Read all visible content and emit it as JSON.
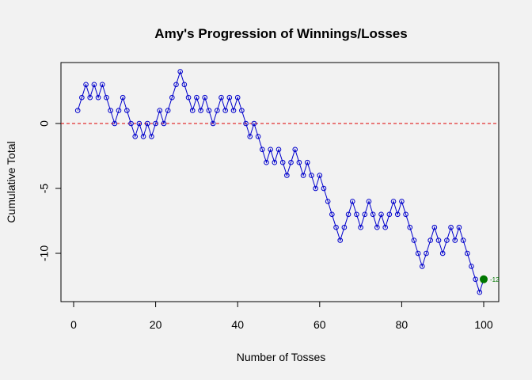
{
  "chart_data": {
    "type": "line",
    "title": "Amy's Progression of Winnings/Losses",
    "xlabel": "Number of Tosses",
    "ylabel": "Cumulative Total",
    "xlim": [
      0,
      100
    ],
    "ylim": [
      -13,
      4
    ],
    "x_ticks": [
      0,
      20,
      40,
      60,
      80,
      100
    ],
    "y_ticks": [
      -10,
      -5,
      0
    ],
    "grid": false,
    "line_color": "#0000cc",
    "marker": "open-circle",
    "reference_line": {
      "y": 0,
      "color": "#dd0000",
      "style": "dashed"
    },
    "final_point": {
      "x": 100,
      "y": -12,
      "label": "-12",
      "color": "#007700"
    },
    "x": [
      1,
      2,
      3,
      4,
      5,
      6,
      7,
      8,
      9,
      10,
      11,
      12,
      13,
      14,
      15,
      16,
      17,
      18,
      19,
      20,
      21,
      22,
      23,
      24,
      25,
      26,
      27,
      28,
      29,
      30,
      31,
      32,
      33,
      34,
      35,
      36,
      37,
      38,
      39,
      40,
      41,
      42,
      43,
      44,
      45,
      46,
      47,
      48,
      49,
      50,
      51,
      52,
      53,
      54,
      55,
      56,
      57,
      58,
      59,
      60,
      61,
      62,
      63,
      64,
      65,
      66,
      67,
      68,
      69,
      70,
      71,
      72,
      73,
      74,
      75,
      76,
      77,
      78,
      79,
      80,
      81,
      82,
      83,
      84,
      85,
      86,
      87,
      88,
      89,
      90,
      91,
      92,
      93,
      94,
      95,
      96,
      97,
      98,
      99,
      100
    ],
    "y": [
      1,
      2,
      3,
      2,
      3,
      2,
      3,
      2,
      1,
      0,
      1,
      2,
      1,
      0,
      -1,
      0,
      -1,
      0,
      -1,
      0,
      1,
      0,
      1,
      2,
      3,
      4,
      3,
      2,
      1,
      2,
      1,
      2,
      1,
      0,
      1,
      2,
      1,
      2,
      1,
      2,
      1,
      0,
      -1,
      0,
      -1,
      -2,
      -3,
      -2,
      -3,
      -2,
      -3,
      -4,
      -3,
      -2,
      -3,
      -4,
      -3,
      -4,
      -5,
      -4,
      -5,
      -6,
      -7,
      -8,
      -9,
      -8,
      -7,
      -6,
      -7,
      -8,
      -7,
      -6,
      -7,
      -8,
      -7,
      -8,
      -7,
      -6,
      -7,
      -6,
      -7,
      -8,
      -9,
      -10,
      -11,
      -10,
      -9,
      -8,
      -9,
      -10,
      -9,
      -8,
      -9,
      -8,
      -9,
      -10,
      -11,
      -12,
      -13,
      -12
    ]
  }
}
